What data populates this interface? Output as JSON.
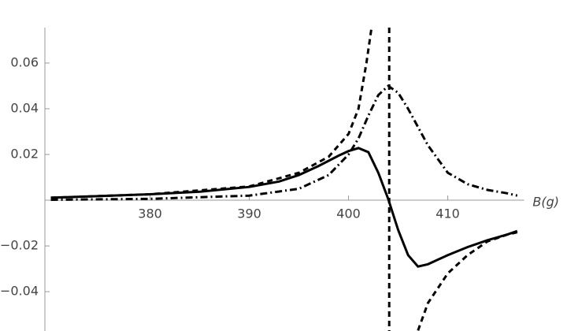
{
  "chart_data": {
    "type": "line",
    "x_label": "B(g)",
    "xlim": [
      369.4,
      417.7
    ],
    "ylim": [
      -0.0572,
      0.0755
    ],
    "xticks": [
      380,
      390,
      400,
      410
    ],
    "yticks": [
      {
        "value": -0.04,
        "label": "−0.04"
      },
      {
        "value": -0.02,
        "label": "−0.02"
      },
      0.02,
      0.04,
      0.06
    ],
    "vline": {
      "x": 404.1,
      "color": "#000000",
      "dash": "dashed"
    },
    "series": [
      {
        "color": "#000000",
        "dash": "solid",
        "x": [
          370,
          375,
          380,
          385,
          390,
          393,
          395,
          397,
          399,
          400,
          401,
          402,
          403,
          404,
          405,
          406,
          407,
          408,
          409,
          410,
          412,
          414,
          416,
          417
        ],
        "values": [
          0.0011,
          0.0018,
          0.0026,
          0.0037,
          0.0058,
          0.0082,
          0.011,
          0.015,
          0.0195,
          0.0215,
          0.0228,
          0.021,
          0.012,
          0.0005,
          -0.013,
          -0.024,
          -0.029,
          -0.028,
          -0.026,
          -0.024,
          -0.0205,
          -0.0175,
          -0.015,
          -0.0135
        ]
      },
      {
        "color": "#000000",
        "dash": "dashed",
        "x": [
          370,
          380,
          390,
          395,
          398,
          400,
          401,
          401.8,
          402.3,
          404.1,
          407,
          408,
          410,
          412,
          414,
          416,
          417
        ],
        "values": [
          0.0011,
          0.0026,
          0.006,
          0.012,
          0.019,
          0.029,
          0.04,
          0.06,
          0.075,
          null,
          -0.057,
          -0.045,
          -0.032,
          -0.024,
          -0.018,
          -0.015,
          -0.014
        ]
      },
      {
        "color": "#000000",
        "dash": "dashdot",
        "x": [
          370,
          380,
          390,
          395,
          398,
          400,
          401,
          402,
          403,
          404,
          405,
          406,
          407,
          408,
          410,
          412,
          414,
          416,
          417
        ],
        "values": [
          0.0002,
          0.0006,
          0.002,
          0.005,
          0.011,
          0.02,
          0.027,
          0.037,
          0.046,
          0.05,
          0.047,
          0.04,
          0.032,
          0.024,
          0.012,
          0.007,
          0.0045,
          0.003,
          0.002
        ]
      }
    ]
  }
}
